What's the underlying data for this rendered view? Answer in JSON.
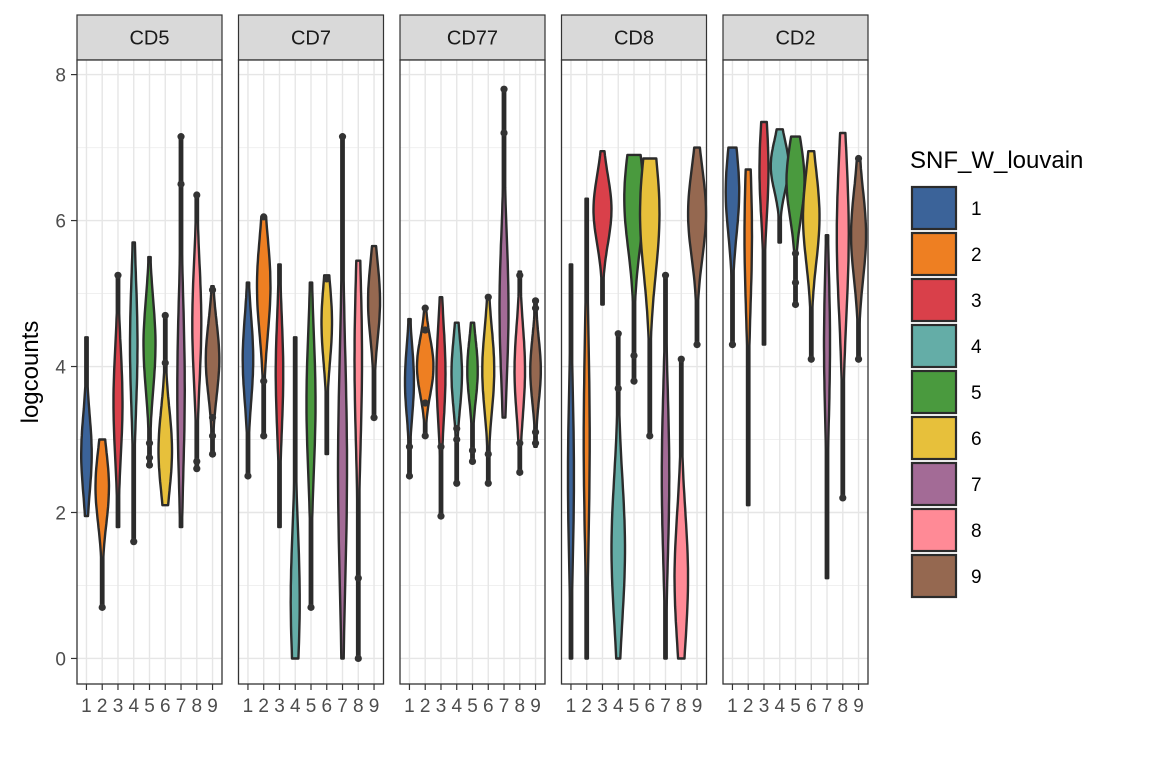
{
  "chart_data": {
    "type": "violin",
    "ylabel": "logcounts",
    "ylim": [
      -0.35,
      8.2
    ],
    "yticks": [
      0,
      2,
      4,
      6,
      8
    ],
    "categories": [
      "1",
      "2",
      "3",
      "4",
      "5",
      "6",
      "7",
      "8",
      "9"
    ],
    "grid": true,
    "legend": {
      "title": "SNF_W_louvain",
      "placement": "right",
      "items": [
        {
          "label": "1",
          "color": "#3B6399"
        },
        {
          "label": "2",
          "color": "#EE7F22"
        },
        {
          "label": "3",
          "color": "#D9404A"
        },
        {
          "label": "4",
          "color": "#64ADA7"
        },
        {
          "label": "5",
          "color": "#4A9A3E"
        },
        {
          "label": "6",
          "color": "#E7C03B"
        },
        {
          "label": "7",
          "color": "#A36B96"
        },
        {
          "label": "8",
          "color": "#FF8A96"
        },
        {
          "label": "9",
          "color": "#956850"
        }
      ]
    },
    "panels": [
      {
        "title": "CD5",
        "violins": [
          {
            "min": 1.95,
            "max": 4.4,
            "center": 2.8,
            "width": 0.35,
            "outliers": []
          },
          {
            "min": 0.7,
            "max": 3.0,
            "center": 2.35,
            "width": 0.45,
            "outliers": [
              0.7
            ]
          },
          {
            "min": 1.8,
            "max": 5.25,
            "center": 3.5,
            "width": 0.3,
            "outliers": [
              5.25
            ]
          },
          {
            "min": 1.6,
            "max": 5.7,
            "center": 4.3,
            "width": 0.25,
            "outliers": [
              1.6
            ]
          },
          {
            "min": 2.65,
            "max": 5.5,
            "center": 4.3,
            "width": 0.4,
            "outliers": [
              2.65,
              2.75,
              2.95
            ]
          },
          {
            "min": 2.1,
            "max": 4.7,
            "center": 2.85,
            "width": 0.45,
            "outliers": [
              4.7,
              4.05
            ]
          },
          {
            "min": 1.8,
            "max": 7.15,
            "center": 3.7,
            "width": 0.25,
            "outliers": [
              7.15,
              6.5
            ]
          },
          {
            "min": 2.6,
            "max": 6.35,
            "center": 4.6,
            "width": 0.3,
            "outliers": [
              6.35,
              2.6,
              2.7
            ]
          },
          {
            "min": 2.8,
            "max": 5.1,
            "center": 4.1,
            "width": 0.45,
            "outliers": [
              5.05,
              3.3,
              3.05,
              2.8
            ]
          }
        ]
      },
      {
        "title": "CD7",
        "violins": [
          {
            "min": 2.5,
            "max": 5.15,
            "center": 4.1,
            "width": 0.35,
            "outliers": [
              2.5
            ]
          },
          {
            "min": 3.05,
            "max": 6.05,
            "center": 5.1,
            "width": 0.45,
            "outliers": [
              6.05,
              3.05,
              3.8
            ]
          },
          {
            "min": 1.8,
            "max": 5.4,
            "center": 3.9,
            "width": 0.25,
            "outliers": []
          },
          {
            "min": 0.0,
            "max": 4.4,
            "center": 0.8,
            "width": 0.3,
            "outliers": []
          },
          {
            "min": 0.7,
            "max": 5.15,
            "center": 3.5,
            "width": 0.3,
            "outliers": [
              0.7
            ]
          },
          {
            "min": 2.8,
            "max": 5.25,
            "center": 4.6,
            "width": 0.35,
            "outliers": [
              5.2
            ]
          },
          {
            "min": 0.0,
            "max": 7.15,
            "center": 2.6,
            "width": 0.3,
            "outliers": [
              7.15
            ]
          },
          {
            "min": 0.0,
            "max": 5.45,
            "center": 4.1,
            "width": 0.25,
            "outliers": [
              1.1,
              0.0
            ]
          },
          {
            "min": 3.3,
            "max": 5.65,
            "center": 4.9,
            "width": 0.4,
            "outliers": [
              3.3
            ]
          }
        ]
      },
      {
        "title": "CD77",
        "violins": [
          {
            "min": 2.5,
            "max": 4.65,
            "center": 3.8,
            "width": 0.3,
            "outliers": [
              2.9,
              2.5
            ]
          },
          {
            "min": 3.05,
            "max": 4.8,
            "center": 4.0,
            "width": 0.55,
            "outliers": [
              4.8,
              4.5,
              3.5,
              3.05
            ]
          },
          {
            "min": 1.95,
            "max": 4.95,
            "center": 3.9,
            "width": 0.3,
            "outliers": [
              1.95,
              2.9
            ]
          },
          {
            "min": 2.4,
            "max": 4.6,
            "center": 3.9,
            "width": 0.35,
            "outliers": [
              3.15,
              3.0,
              2.4
            ]
          },
          {
            "min": 2.7,
            "max": 4.6,
            "center": 3.95,
            "width": 0.35,
            "outliers": [
              2.85,
              2.7
            ]
          },
          {
            "min": 2.4,
            "max": 4.95,
            "center": 3.95,
            "width": 0.4,
            "outliers": [
              4.95,
              2.8,
              2.4
            ]
          },
          {
            "min": 3.3,
            "max": 7.8,
            "center": 4.8,
            "width": 0.3,
            "outliers": [
              7.8,
              7.2
            ]
          },
          {
            "min": 2.55,
            "max": 5.3,
            "center": 3.95,
            "width": 0.35,
            "outliers": [
              5.25,
              2.95,
              2.55
            ]
          },
          {
            "min": 2.9,
            "max": 4.9,
            "center": 3.95,
            "width": 0.35,
            "outliers": [
              4.9,
              4.8,
              3.1,
              2.95
            ]
          }
        ]
      },
      {
        "title": "CD8",
        "violins": [
          {
            "min": 0.0,
            "max": 5.4,
            "center": 2.5,
            "width": 0.2,
            "outliers": []
          },
          {
            "min": 0.0,
            "max": 6.3,
            "center": 3.0,
            "width": 0.2,
            "outliers": []
          },
          {
            "min": 4.85,
            "max": 6.95,
            "center": 6.15,
            "width": 0.6,
            "outliers": []
          },
          {
            "min": 0.0,
            "max": 4.45,
            "center": 1.5,
            "width": 0.45,
            "outliers": [
              4.45,
              3.7
            ]
          },
          {
            "min": 3.8,
            "max": 6.9,
            "center": 6.3,
            "width": 0.65,
            "outliers": [
              4.15,
              3.8
            ]
          },
          {
            "min": 3.05,
            "max": 6.85,
            "center": 6.1,
            "width": 0.65,
            "outliers": [
              3.05
            ]
          },
          {
            "min": 0.0,
            "max": 5.25,
            "center": 2.5,
            "width": 0.25,
            "outliers": [
              5.25
            ]
          },
          {
            "min": 0.0,
            "max": 4.1,
            "center": 1.1,
            "width": 0.45,
            "outliers": [
              4.1
            ]
          },
          {
            "min": 4.3,
            "max": 7.0,
            "center": 6.1,
            "width": 0.6,
            "outliers": [
              4.3
            ]
          }
        ]
      },
      {
        "title": "CD2",
        "violins": [
          {
            "min": 4.3,
            "max": 7.0,
            "center": 6.4,
            "width": 0.45,
            "outliers": [
              4.3
            ]
          },
          {
            "min": 2.1,
            "max": 6.7,
            "center": 5.8,
            "width": 0.25,
            "outliers": []
          },
          {
            "min": 4.3,
            "max": 7.35,
            "center": 6.7,
            "width": 0.3,
            "outliers": []
          },
          {
            "min": 5.7,
            "max": 7.25,
            "center": 6.75,
            "width": 0.6,
            "outliers": []
          },
          {
            "min": 4.85,
            "max": 7.15,
            "center": 6.55,
            "width": 0.6,
            "outliers": [
              5.55,
              5.15,
              4.85
            ]
          },
          {
            "min": 4.1,
            "max": 6.95,
            "center": 6.05,
            "width": 0.55,
            "outliers": [
              4.1
            ]
          },
          {
            "min": 1.1,
            "max": 5.8,
            "center": 4.3,
            "width": 0.2,
            "outliers": []
          },
          {
            "min": 2.2,
            "max": 7.2,
            "center": 5.8,
            "width": 0.4,
            "outliers": [
              2.2
            ]
          },
          {
            "min": 4.1,
            "max": 6.85,
            "center": 5.8,
            "width": 0.5,
            "outliers": [
              6.85,
              4.1
            ]
          }
        ]
      }
    ]
  }
}
